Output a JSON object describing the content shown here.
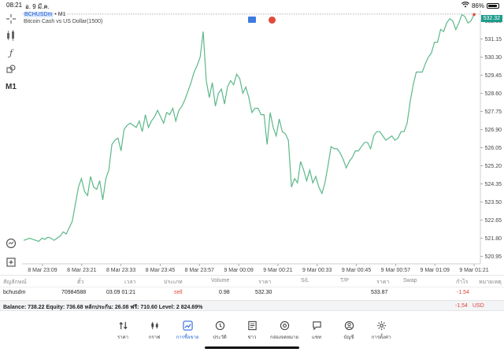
{
  "status_bar": {
    "time": "08:21",
    "date": "อ. 9 มี.ค.",
    "battery": "86%"
  },
  "chart": {
    "symbol": "BCHUSDm",
    "timeframe": "• M1",
    "description": "Bitcoin Cash vs US Dollar(1500)",
    "current_price": "532.32",
    "line_color": "#5cb88a",
    "tag_color": "#1e9c8c"
  },
  "left_toolbar": {
    "crosshair_icon": "crosshair-icon",
    "indicators_icon": "indicators-icon",
    "function_icon": "function-icon",
    "objects_icon": "objects-icon",
    "timeframe_label": "M1",
    "trade_icon": "trade-icon",
    "add_icon": "add-icon"
  },
  "chart_data": {
    "type": "line",
    "x": [
      "8 Mar 23:09",
      "8 Mar 23:21",
      "8 Mar 23:33",
      "8 Mar 23:45",
      "8 Mar 23:57",
      "9 Mar 00:09",
      "9 Mar 00:21",
      "9 Mar 00:33",
      "9 Mar 00:45",
      "9 Mar 00:57",
      "9 Mar 01:09",
      "9 Mar 01:21"
    ],
    "y_ticks": [
      "532.00",
      "531.15",
      "530.30",
      "529.45",
      "528.60",
      "527.75",
      "526.90",
      "526.05",
      "525.20",
      "524.35",
      "523.50",
      "522.65",
      "521.80",
      "520.95"
    ],
    "ylim": [
      520.6,
      532.5
    ],
    "points": [
      521.7,
      521.75,
      521.8,
      521.75,
      521.7,
      521.65,
      521.8,
      521.75,
      521.85,
      521.8,
      521.7,
      521.8,
      521.9,
      522.1,
      522.0,
      522.3,
      522.6,
      523.4,
      524.2,
      524.6,
      524.0,
      523.8,
      524.7,
      524.2,
      524.1,
      524.5,
      523.6,
      524.6,
      525.0,
      526.2,
      526.4,
      526.5,
      525.9,
      526.9,
      527.1,
      527.2,
      527.1,
      527.0,
      527.3,
      526.8,
      527.6,
      527.0,
      527.3,
      527.5,
      527.8,
      527.5,
      527.2,
      527.7,
      527.6,
      527.9,
      527.3,
      527.8,
      528.0,
      528.3,
      528.7,
      529.1,
      529.6,
      529.9,
      530.3,
      531.5,
      529.2,
      528.4,
      529.1,
      528.0,
      528.6,
      528.8,
      528.1,
      528.9,
      529.2,
      529.0,
      529.5,
      529.3,
      528.6,
      528.9,
      528.4,
      527.7,
      527.9,
      527.9,
      527.6,
      527.6,
      526.2,
      527.7,
      527.0,
      526.6,
      527.4,
      526.8,
      526.7,
      526.4,
      524.2,
      524.6,
      524.4,
      525.4,
      525.0,
      524.5,
      525.0,
      524.4,
      524.7,
      524.2,
      523.9,
      524.4,
      525.2,
      526.1,
      526.0,
      526.0,
      525.8,
      525.5,
      525.1,
      525.4,
      525.6,
      525.9,
      525.9,
      526.1,
      526.3,
      526.3,
      526.0,
      526.6,
      526.8,
      526.8,
      526.6,
      526.4,
      526.5,
      526.6,
      526.4,
      526.5,
      526.8,
      526.8,
      527.2,
      528.2,
      529.0,
      529.6,
      529.6,
      529.6,
      530.0,
      530.3,
      530.5,
      531.0,
      531.0,
      531.6,
      531.5,
      531.9,
      532.1,
      532.0,
      531.6,
      531.9,
      532.3,
      532.2,
      531.9,
      532.0,
      532.3
    ],
    "current_price": 532.32,
    "xlabel": "",
    "ylabel": ""
  },
  "positions": {
    "headers": [
      "สัญลักษณ์",
      "ตั๋ว",
      "เวลา",
      "ประเภท",
      "Volume",
      "ราคา",
      "S/L",
      "T/P",
      "ราคา",
      "Swap",
      "กำไร",
      "หมายเหตุ"
    ],
    "rows": [
      {
        "symbol": "bchusdm",
        "ticket": "70984588",
        "time": "03.09 01:21",
        "type": "sell",
        "volume": "0.98",
        "open_price": "532.30",
        "sl": "",
        "tp": "",
        "price": "533.87",
        "swap": "",
        "profit": "-1.54",
        "comment": ""
      }
    ]
  },
  "balance": {
    "text": "Balance: 738.22 Equity: 736.68 หลักประกัน: 26.08 ฟรี: 710.60 Level: 2 824.69%",
    "profit": "-1.54",
    "currency": "USD"
  },
  "bottom_nav": [
    {
      "icon": "quotes-icon",
      "label": "ราคา"
    },
    {
      "icon": "chart-icon",
      "label": "กราฟ"
    },
    {
      "icon": "trade-icon",
      "label": "การซื้อขาย"
    },
    {
      "icon": "history-icon",
      "label": "ประวัติ"
    },
    {
      "icon": "news-icon",
      "label": "ข่าว"
    },
    {
      "icon": "mailbox-icon",
      "label": "กล่องจดหมาย"
    },
    {
      "icon": "chat-icon",
      "label": "แชท"
    },
    {
      "icon": "account-icon",
      "label": "บัญชี"
    },
    {
      "icon": "settings-icon",
      "label": "การตั้งค่า"
    }
  ]
}
